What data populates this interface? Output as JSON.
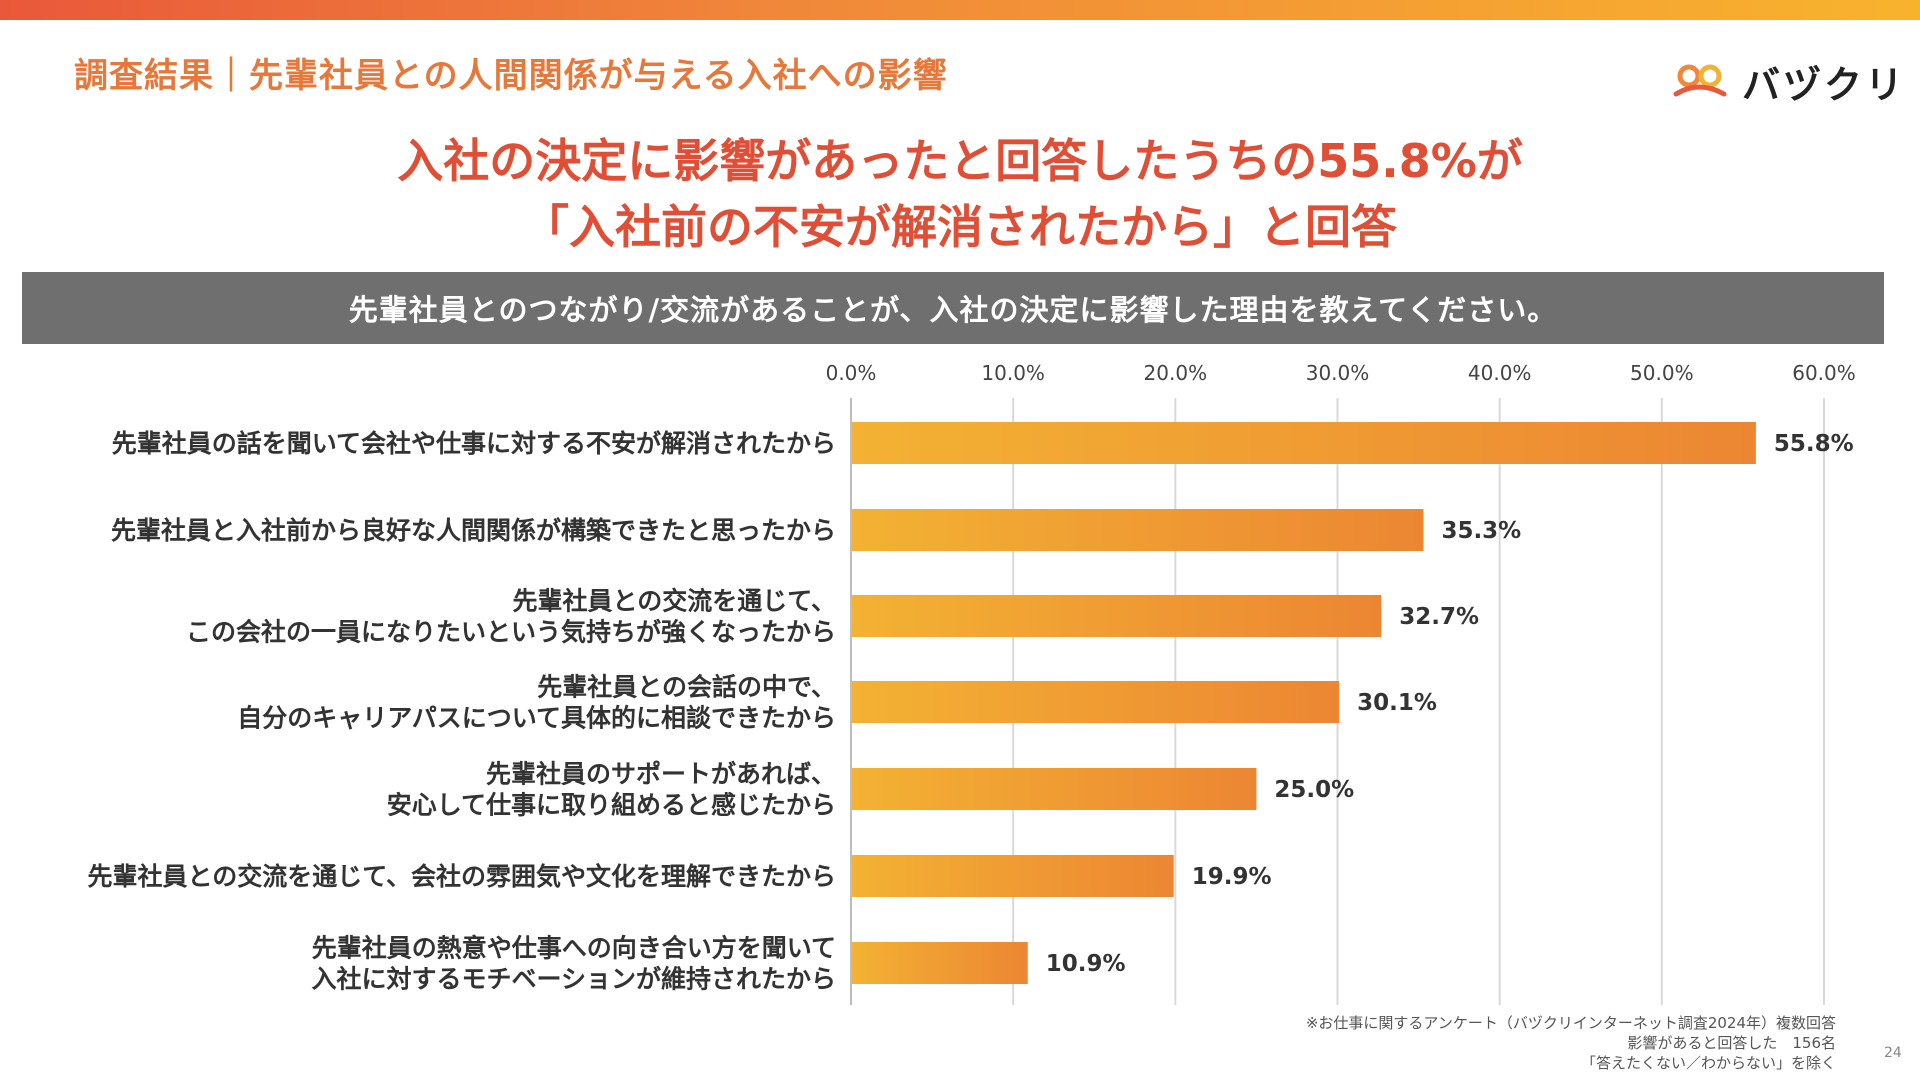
{
  "header": {
    "section_title": "調査結果｜先輩社員との人間関係が与える入社への影響",
    "logo_text": "バヅクリ",
    "brand_color": "#e8783a"
  },
  "headline": {
    "line1": "入社の決定に影響があったと回答したうちの55.8%が",
    "line2": "「入社前の不安が解消されたから」と回答",
    "color": "#e04e35"
  },
  "question": "先輩社員とのつながり/交流があることが、入社の決定に影響した理由を教えてください。",
  "chart_data": {
    "type": "bar",
    "orientation": "horizontal",
    "xlim": [
      0,
      60
    ],
    "ticks": [
      0,
      10,
      20,
      30,
      40,
      50,
      60
    ],
    "tick_labels": [
      "0.0%",
      "10.0%",
      "20.0%",
      "30.0%",
      "40.0%",
      "50.0%",
      "60.0%"
    ],
    "categories": [
      [
        "先輩社員の話を聞いて会社や仕事に対する不安が解消されたから"
      ],
      [
        "先輩社員と入社前から良好な人間関係が構築できたと思ったから"
      ],
      [
        "先輩社員との交流を通じて、",
        "この会社の一員になりたいという気持ちが強くなったから"
      ],
      [
        "先輩社員との会話の中で、",
        "自分のキャリアパスについて具体的に相談できたから"
      ],
      [
        "先輩社員のサポートがあれば、",
        "安心して仕事に取り組めると感じたから"
      ],
      [
        "先輩社員との交流を通じて、会社の雰囲気や文化を理解できたから"
      ],
      [
        "先輩社員の熱意や仕事への向き合い方を聞いて",
        "入社に対するモチベーションが維持されたから"
      ]
    ],
    "values": [
      55.8,
      35.3,
      32.7,
      30.1,
      25.0,
      19.9,
      10.9
    ],
    "value_labels": [
      "55.8%",
      "35.3%",
      "32.7%",
      "30.1%",
      "25.0%",
      "19.9%",
      "10.9%"
    ],
    "grid": true,
    "bar_color_start": "#f3b233",
    "bar_color_end": "#ec8633"
  },
  "footnote": {
    "line1": "※お仕事に関するアンケート（バヅクリインターネット調査2024年）複数回答",
    "line2": "影響があると回答した　156名",
    "line3": "「答えたくない／わからない」を除く"
  },
  "page_number": "24"
}
